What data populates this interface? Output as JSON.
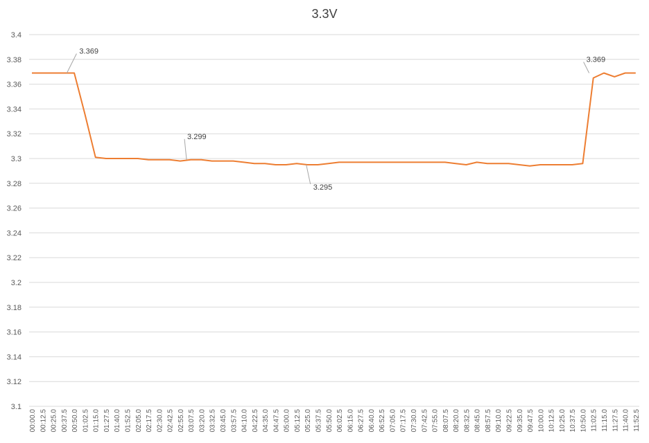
{
  "chart_data": {
    "type": "line",
    "title": "3.3V",
    "xlabel": "",
    "ylabel": "",
    "ylim": [
      3.1,
      3.4
    ],
    "yticks": [
      "3.1",
      "3.12",
      "3.14",
      "3.16",
      "3.18",
      "3.2",
      "3.22",
      "3.24",
      "3.26",
      "3.28",
      "3.3",
      "3.32",
      "3.34",
      "3.36",
      "3.38",
      "3.4"
    ],
    "categories": [
      "00:00.0",
      "00:12.5",
      "00:25.0",
      "00:37.5",
      "00:50.0",
      "01:02.5",
      "01:15.0",
      "01:27.5",
      "01:40.0",
      "01:52.5",
      "02:05.0",
      "02:17.5",
      "02:30.0",
      "02:42.5",
      "02:55.0",
      "03:07.5",
      "03:20.0",
      "03:32.5",
      "03:45.0",
      "03:57.5",
      "04:10.0",
      "04:22.5",
      "04:35.0",
      "04:47.5",
      "05:00.0",
      "05:12.5",
      "05:25.0",
      "05:37.5",
      "05:50.0",
      "06:02.5",
      "06:15.0",
      "06:27.5",
      "06:40.0",
      "06:52.5",
      "07:05.0",
      "07:17.5",
      "07:30.0",
      "07:42.5",
      "07:55.0",
      "08:07.5",
      "08:20.0",
      "08:32.5",
      "08:45.0",
      "08:57.5",
      "09:10.0",
      "09:22.5",
      "09:35.0",
      "09:47.5",
      "10:00.0",
      "10:12.5",
      "10:25.0",
      "10:37.5",
      "10:50.0",
      "11:02.5",
      "11:15.0",
      "11:27.5",
      "11:40.0",
      "11:52.5"
    ],
    "series": [
      {
        "color": "#ED7D31",
        "x": [
          0,
          1,
          2,
          3,
          4,
          5,
          6,
          7,
          8,
          9,
          10,
          11,
          12,
          13,
          14,
          15,
          16,
          17,
          18,
          19,
          20,
          21,
          22,
          23,
          24,
          25,
          26,
          27,
          28,
          29,
          30,
          31,
          32,
          33,
          34,
          35,
          36,
          37,
          38,
          39,
          40,
          41,
          42,
          43,
          44,
          45,
          46,
          47,
          48,
          49,
          50,
          51,
          52,
          53,
          54,
          55,
          56,
          57
        ],
        "values": [
          3.369,
          3.369,
          3.369,
          3.369,
          3.369,
          3.336,
          3.301,
          3.3,
          3.3,
          3.3,
          3.3,
          3.299,
          3.299,
          3.299,
          3.298,
          3.299,
          3.299,
          3.298,
          3.298,
          3.298,
          3.297,
          3.296,
          3.296,
          3.295,
          3.295,
          3.296,
          3.295,
          3.295,
          3.296,
          3.297,
          3.297,
          3.297,
          3.297,
          3.297,
          3.297,
          3.297,
          3.297,
          3.297,
          3.297,
          3.297,
          3.296,
          3.295,
          3.297,
          3.296,
          3.296,
          3.296,
          3.295,
          3.294,
          3.295,
          3.295,
          3.295,
          3.295,
          3.296,
          3.365,
          3.369,
          3.366,
          3.369,
          3.369
        ]
      }
    ],
    "annotations": [
      {
        "label": "3.369",
        "x": 3.3,
        "y": 3.369
      },
      {
        "label": "3.299",
        "x": 14.6,
        "y": 3.299
      },
      {
        "label": "3.295",
        "x": 25.9,
        "y": 3.295
      },
      {
        "label": "3.369",
        "x": 52.6,
        "y": 3.369
      }
    ],
    "grid": true,
    "legend": "none"
  }
}
